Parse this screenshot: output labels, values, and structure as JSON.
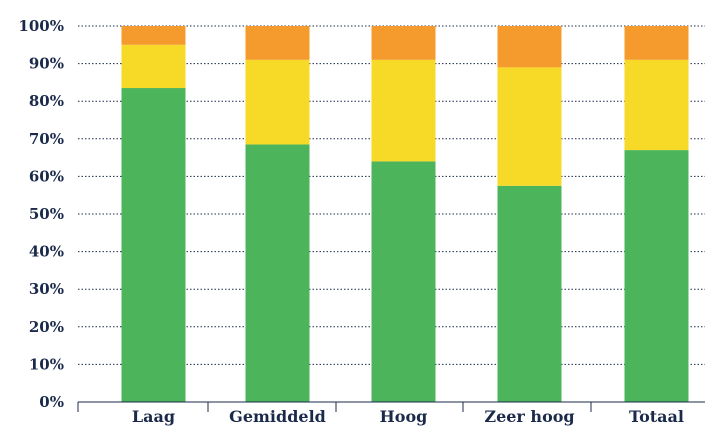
{
  "chart_data": {
    "type": "bar",
    "stacked": true,
    "categories": [
      "Laag",
      "Gemiddeld",
      "Hoog",
      "Zeer hoog",
      "Totaal"
    ],
    "series": [
      {
        "color": "#4cb45a",
        "values": [
          83.5,
          68.5,
          64,
          57.5,
          67
        ]
      },
      {
        "color": "#f7d928",
        "values": [
          11.5,
          22.5,
          27,
          31.5,
          24
        ]
      },
      {
        "color": "#f59a2d",
        "values": [
          5,
          9,
          9,
          11,
          9
        ]
      }
    ],
    "yticks": [
      "0%",
      "10%",
      "20%",
      "30%",
      "40%",
      "50%",
      "60%",
      "70%",
      "80%",
      "90%",
      "100%"
    ],
    "ylim": [
      0,
      100
    ],
    "grid": true,
    "title": "",
    "xlabel": "",
    "ylabel": ""
  }
}
